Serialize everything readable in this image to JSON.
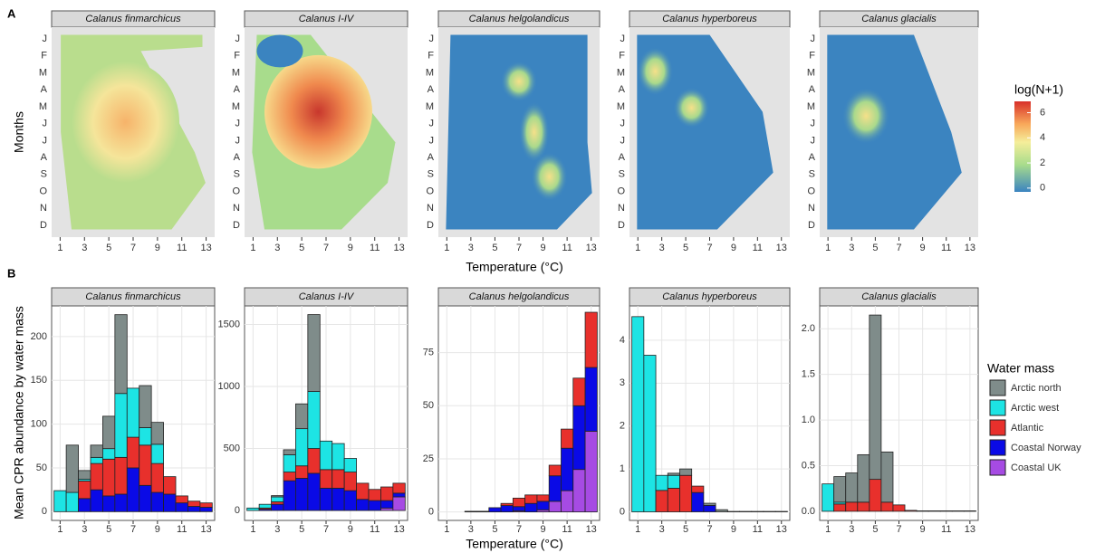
{
  "panel_a": {
    "label": "A",
    "y_label": "Months",
    "x_label": "Temperature (°C)",
    "facets": [
      "Calanus finmarchicus",
      "Calanus I-IV",
      "Calanus helgolandicus",
      "Calanus hyperboreus",
      "Calanus glacialis"
    ],
    "months": [
      "J",
      "F",
      "M",
      "A",
      "M",
      "J",
      "J",
      "A",
      "S",
      "O",
      "N",
      "D"
    ],
    "xlim": [
      0.3,
      13.7
    ],
    "xticks": [
      1,
      3,
      5,
      7,
      9,
      11,
      13
    ],
    "colorbar": {
      "title": "log(N+1)",
      "lim": [
        -0.3,
        6.9
      ],
      "ticks": [
        0,
        2,
        4,
        6
      ]
    }
  },
  "panel_b": {
    "label": "B",
    "y_label": "Mean CPR abundance by water mass",
    "x_label": "Temperature (°C)",
    "legend_title": "Water mass"
  },
  "chart_data": [
    {
      "type": "bar",
      "stacked": true,
      "grid": true,
      "title": "Calanus finmarchicus",
      "x": [
        1,
        2,
        3,
        4,
        5,
        6,
        7,
        8,
        9,
        10,
        11,
        12,
        13
      ],
      "xlim": [
        0.3,
        13.7
      ],
      "xticks": [
        1,
        3,
        5,
        7,
        9,
        11,
        13
      ],
      "ylim": [
        -10,
        235
      ],
      "yticks": [
        0,
        50,
        100,
        150,
        200
      ],
      "series": [
        {
          "name": "Arctic north",
          "color": "#7f8c8a",
          "values": [
            0,
            54,
            10,
            14,
            37,
            90,
            0,
            48,
            25,
            0,
            0,
            0,
            0
          ]
        },
        {
          "name": "Arctic west",
          "color": "#1de4e4",
          "values": [
            24,
            22,
            2,
            7,
            12,
            73,
            56,
            20,
            22,
            0,
            0,
            0,
            0
          ]
        },
        {
          "name": "Atlantic",
          "color": "#e8302c",
          "values": [
            0,
            0,
            20,
            30,
            42,
            42,
            35,
            46,
            33,
            20,
            8,
            6,
            5
          ]
        },
        {
          "name": "Coastal Norway",
          "color": "#0a0ae6",
          "values": [
            0,
            0,
            15,
            25,
            18,
            20,
            50,
            30,
            22,
            20,
            10,
            6,
            5
          ]
        },
        {
          "name": "Coastal UK",
          "color": "#a64be3",
          "values": [
            0,
            0,
            0,
            0,
            0,
            0,
            0,
            0,
            0,
            0,
            0,
            0,
            0
          ]
        }
      ]
    },
    {
      "type": "bar",
      "stacked": true,
      "grid": true,
      "title": "Calanus I-IV",
      "x": [
        1,
        2,
        3,
        4,
        5,
        6,
        7,
        8,
        9,
        10,
        11,
        12,
        13
      ],
      "xlim": [
        0.3,
        13.7
      ],
      "xticks": [
        1,
        3,
        5,
        7,
        9,
        11,
        13
      ],
      "ylim": [
        -80,
        1650
      ],
      "yticks": [
        0,
        500,
        1000,
        1500
      ],
      "series": [
        {
          "name": "Arctic north",
          "color": "#7f8c8a",
          "values": [
            0,
            0,
            10,
            40,
            200,
            620,
            0,
            0,
            0,
            0,
            0,
            0,
            0
          ]
        },
        {
          "name": "Arctic west",
          "color": "#1de4e4",
          "values": [
            20,
            30,
            40,
            140,
            300,
            460,
            230,
            210,
            110,
            0,
            0,
            0,
            0
          ]
        },
        {
          "name": "Atlantic",
          "color": "#e8302c",
          "values": [
            0,
            10,
            20,
            70,
            100,
            200,
            150,
            150,
            150,
            130,
            90,
            110,
            80
          ]
        },
        {
          "name": "Coastal Norway",
          "color": "#0a0ae6",
          "values": [
            0,
            10,
            50,
            240,
            260,
            300,
            180,
            180,
            160,
            90,
            80,
            60,
            30
          ]
        },
        {
          "name": "Coastal UK",
          "color": "#a64be3",
          "values": [
            0,
            0,
            0,
            0,
            0,
            0,
            0,
            0,
            0,
            0,
            0,
            20,
            110
          ]
        }
      ]
    },
    {
      "type": "bar",
      "stacked": true,
      "grid": true,
      "title": "Calanus helgolandicus",
      "x": [
        1,
        2,
        3,
        4,
        5,
        6,
        7,
        8,
        9,
        10,
        11,
        12,
        13
      ],
      "xlim": [
        0.3,
        13.7
      ],
      "xticks": [
        1,
        3,
        5,
        7,
        9,
        11,
        13
      ],
      "ylim": [
        -4,
        97
      ],
      "yticks": [
        0,
        25,
        50,
        75
      ],
      "series": [
        {
          "name": "Arctic north",
          "color": "#7f8c8a",
          "values": [
            0,
            0,
            0,
            0,
            0,
            0,
            0,
            0,
            0,
            0,
            0,
            0,
            0
          ]
        },
        {
          "name": "Arctic west",
          "color": "#1de4e4",
          "values": [
            0,
            0,
            0,
            0,
            0,
            0,
            0,
            0,
            0,
            0,
            0,
            0,
            0
          ]
        },
        {
          "name": "Atlantic",
          "color": "#e8302c",
          "values": [
            0,
            0,
            0,
            0,
            0,
            1,
            4,
            4,
            3,
            5,
            9,
            13,
            26
          ]
        },
        {
          "name": "Coastal Norway",
          "color": "#0a0ae6",
          "values": [
            0,
            0,
            0.3,
            0.3,
            2,
            3,
            2,
            4,
            4,
            12,
            20,
            30,
            30
          ]
        },
        {
          "name": "Coastal UK",
          "color": "#a64be3",
          "values": [
            0,
            0,
            0,
            0,
            0,
            0,
            0.5,
            0,
            1,
            5,
            10,
            20,
            38
          ]
        }
      ]
    },
    {
      "type": "bar",
      "stacked": true,
      "grid": true,
      "title": "Calanus hyperboreus",
      "x": [
        1,
        2,
        3,
        4,
        5,
        6,
        7,
        8,
        9,
        10,
        11,
        12,
        13
      ],
      "xlim": [
        0.3,
        13.7
      ],
      "xticks": [
        1,
        3,
        5,
        7,
        9,
        11,
        13
      ],
      "ylim": [
        -0.2,
        4.8
      ],
      "yticks": [
        0,
        1,
        2,
        3,
        4
      ],
      "series": [
        {
          "name": "Arctic north",
          "color": "#7f8c8a",
          "values": [
            0,
            0,
            0,
            0.05,
            0.15,
            0,
            0.05,
            0.05,
            0.01,
            0.01,
            0.01,
            0.01,
            0.01
          ]
        },
        {
          "name": "Arctic west",
          "color": "#1de4e4",
          "values": [
            4.55,
            3.65,
            0.35,
            0.3,
            0,
            0,
            0,
            0,
            0,
            0,
            0,
            0,
            0
          ]
        },
        {
          "name": "Atlantic",
          "color": "#e8302c",
          "values": [
            0,
            0,
            0.5,
            0.55,
            0.85,
            0.15,
            0,
            0,
            0,
            0,
            0,
            0,
            0
          ]
        },
        {
          "name": "Coastal Norway",
          "color": "#0a0ae6",
          "values": [
            0,
            0,
            0,
            0,
            0,
            0.45,
            0.15,
            0,
            0,
            0,
            0,
            0,
            0
          ]
        },
        {
          "name": "Coastal UK",
          "color": "#a64be3",
          "values": [
            0,
            0,
            0,
            0,
            0,
            0,
            0,
            0,
            0,
            0,
            0,
            0,
            0
          ]
        }
      ]
    },
    {
      "type": "bar",
      "stacked": true,
      "grid": true,
      "title": "Calanus glacialis",
      "x": [
        1,
        2,
        3,
        4,
        5,
        6,
        7,
        8,
        9,
        10,
        11,
        12,
        13
      ],
      "xlim": [
        0.3,
        13.7
      ],
      "xticks": [
        1,
        3,
        5,
        7,
        9,
        11,
        13
      ],
      "ylim": [
        -0.1,
        2.25
      ],
      "yticks": [
        {
          "value": 0,
          "label": "0.0"
        },
        {
          "value": 0.5,
          "label": "0.5"
        },
        {
          "value": 1,
          "label": "1.0"
        },
        {
          "value": 1.5,
          "label": "1.5"
        },
        {
          "value": 2,
          "label": "2.0"
        }
      ],
      "series": [
        {
          "name": "Arctic north",
          "color": "#7f8c8a",
          "values": [
            0,
            0.28,
            0.32,
            0.52,
            1.8,
            0.55,
            0,
            0,
            0,
            0,
            0,
            0,
            0
          ]
        },
        {
          "name": "Arctic west",
          "color": "#1de4e4",
          "values": [
            0.3,
            0.02,
            0,
            0,
            0,
            0,
            0,
            0,
            0,
            0,
            0,
            0,
            0
          ]
        },
        {
          "name": "Atlantic",
          "color": "#e8302c",
          "values": [
            0,
            0.08,
            0.1,
            0.1,
            0.35,
            0.1,
            0.07,
            0.01,
            0.005,
            0.005,
            0.005,
            0.005,
            0.005
          ]
        },
        {
          "name": "Coastal Norway",
          "color": "#0a0ae6",
          "values": [
            0,
            0,
            0,
            0,
            0,
            0,
            0,
            0,
            0,
            0,
            0,
            0,
            0
          ]
        },
        {
          "name": "Coastal UK",
          "color": "#a64be3",
          "values": [
            0,
            0,
            0,
            0,
            0,
            0,
            0,
            0,
            0,
            0,
            0,
            0,
            0
          ]
        }
      ]
    }
  ]
}
